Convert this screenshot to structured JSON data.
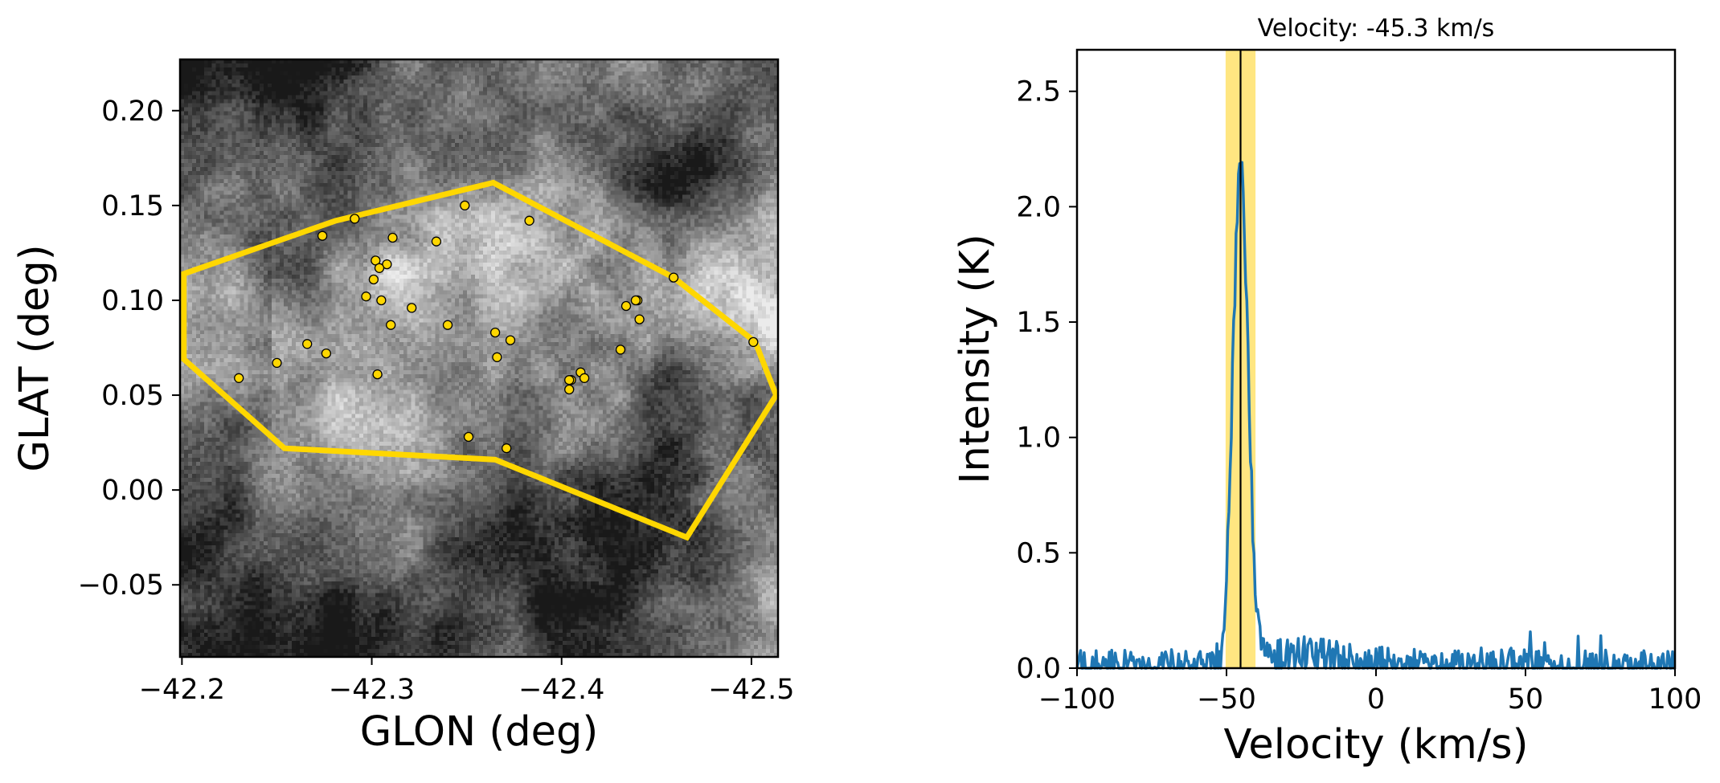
{
  "chart_data": [
    {
      "type": "scatter",
      "panel": "map",
      "title": "",
      "xlabel": "GLON (deg)",
      "ylabel": "GLAT (deg)",
      "xlim": [
        -42.199,
        -42.514
      ],
      "ylim": [
        -0.088,
        0.227
      ],
      "x_ticks": [
        -42.2,
        -42.3,
        -42.4,
        -42.5
      ],
      "x_tick_labels": [
        "−42.2",
        "−42.3",
        "−42.4",
        "−42.5"
      ],
      "y_ticks": [
        0.2,
        0.15,
        0.1,
        0.05,
        0.0,
        -0.05
      ],
      "y_tick_labels": [
        "0.20",
        "0.15",
        "0.10",
        "0.05",
        "0.00",
        "−0.05"
      ],
      "grid": false,
      "background": "grayscale intensity map",
      "polygon": {
        "color": "#FFD700",
        "vertices": [
          [
            -42.201,
            0.114
          ],
          [
            -42.281,
            0.142
          ],
          [
            -42.364,
            0.162
          ],
          [
            -42.459,
            0.112
          ],
          [
            -42.502,
            0.078
          ],
          [
            -42.513,
            0.05
          ],
          [
            -42.466,
            -0.025
          ],
          [
            -42.365,
            0.016
          ],
          [
            -42.254,
            0.022
          ],
          [
            -42.201,
            0.069
          ]
        ]
      },
      "points": {
        "color": "#FFD700",
        "edgecolor": "#000000",
        "x": [
          -42.274,
          -42.311,
          -42.334,
          -42.302,
          -42.308,
          -42.304,
          -42.301,
          -42.297,
          -42.305,
          -42.321,
          -42.31,
          -42.34,
          -42.266,
          -42.276,
          -42.25,
          -42.23,
          -42.303,
          -42.349,
          -42.383,
          -42.44,
          -42.439,
          -42.434,
          -42.441,
          -42.365,
          -42.373,
          -42.366,
          -42.431,
          -42.41,
          -42.412,
          -42.405,
          -42.404,
          -42.404,
          -42.351,
          -42.371,
          -42.459,
          -42.501,
          -42.291
        ],
        "y": [
          0.134,
          0.133,
          0.131,
          0.121,
          0.119,
          0.117,
          0.111,
          0.102,
          0.1,
          0.096,
          0.087,
          0.087,
          0.077,
          0.072,
          0.067,
          0.059,
          0.061,
          0.15,
          0.142,
          0.1,
          0.1,
          0.097,
          0.09,
          0.083,
          0.079,
          0.07,
          0.074,
          0.062,
          0.059,
          0.058,
          0.058,
          0.053,
          0.028,
          0.022,
          0.112,
          0.078,
          0.143
        ]
      }
    },
    {
      "type": "line",
      "panel": "spectrum",
      "title": "Velocity: -45.3 km/s",
      "xlabel": "Velocity (km/s)",
      "ylabel": "Intensity (K)",
      "xlim": [
        -100,
        100
      ],
      "ylim": [
        0,
        2.68
      ],
      "x_ticks": [
        -100,
        -50,
        0,
        50,
        100
      ],
      "x_tick_labels": [
        "−100",
        "−50",
        "0",
        "50",
        "100"
      ],
      "y_ticks": [
        0.0,
        0.5,
        1.0,
        1.5,
        2.0,
        2.5
      ],
      "y_tick_labels": [
        "0.0",
        "0.5",
        "1.0",
        "1.5",
        "2.0",
        "2.5"
      ],
      "grid": false,
      "series": [
        {
          "name": "spectrum",
          "color": "#1f77b4",
          "peak_velocity": -45.3,
          "peak_intensity": 2.15,
          "peak_fwhm": 6.0,
          "noise_level": 0.05,
          "channel_width": 0.4
        }
      ],
      "marker_line": {
        "x": -45.3,
        "color": "#000000"
      },
      "highlight_band": {
        "x_range": [
          -50.3,
          -40.3
        ],
        "color": "#FFE57A"
      }
    }
  ]
}
